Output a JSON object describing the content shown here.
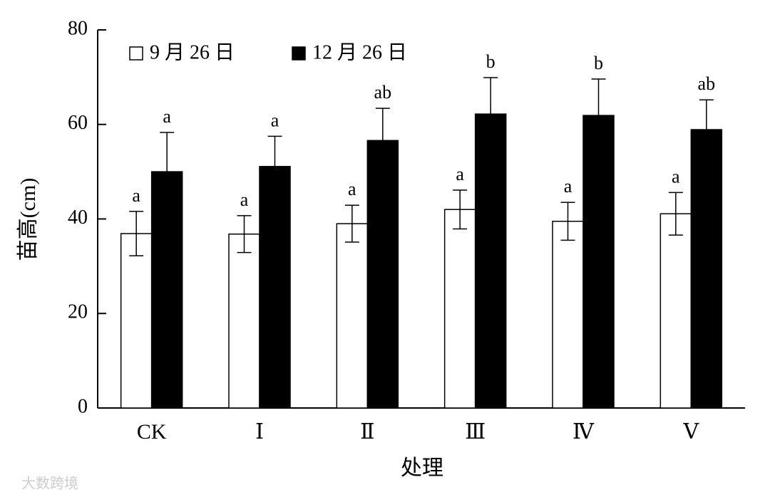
{
  "chart_data": {
    "type": "bar",
    "y_label": "苗高(cm)",
    "x_label": "处理",
    "categories": [
      "CK",
      "Ⅰ",
      "Ⅱ",
      "Ⅲ",
      "Ⅳ",
      "Ⅴ"
    ],
    "series": [
      {
        "name": "9 月 26 日",
        "color": "#ffffff",
        "values": [
          36.9,
          36.8,
          39.0,
          42.0,
          39.5,
          41.1
        ],
        "errors": [
          4.7,
          3.9,
          3.9,
          4.1,
          4.0,
          4.5
        ],
        "letters": [
          "a",
          "a",
          "a",
          "a",
          "a",
          "a"
        ]
      },
      {
        "name": "12 月 26 日",
        "color": "#000000",
        "values": [
          50.0,
          51.1,
          56.6,
          62.2,
          61.9,
          58.9
        ],
        "errors": [
          8.3,
          6.4,
          6.8,
          7.7,
          7.7,
          6.3
        ],
        "letters": [
          "a",
          "a",
          "ab",
          "b",
          "b",
          "ab"
        ]
      }
    ],
    "ylim": [
      0,
      80
    ],
    "yticks": [
      0,
      20,
      40,
      60,
      80
    ],
    "legend": "top-left",
    "watermark": "大数跨境"
  }
}
